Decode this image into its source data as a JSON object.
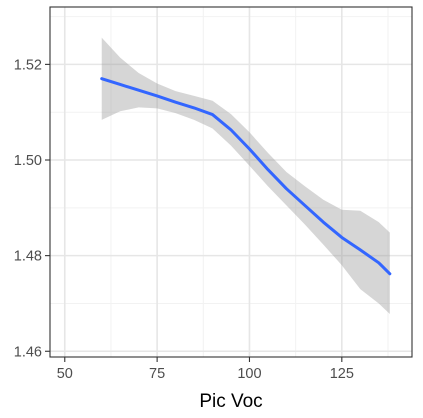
{
  "chart_data": {
    "type": "line",
    "title": "",
    "xlabel": "Pic Voc",
    "ylabel": "",
    "xlim": [
      46,
      144
    ],
    "ylim": [
      1.4588,
      1.532
    ],
    "x_ticks": [
      50,
      75,
      100,
      125
    ],
    "y_ticks": [
      1.46,
      1.48,
      1.5,
      1.52
    ],
    "x_tick_labels": [
      "50",
      "75",
      "100",
      "125"
    ],
    "y_tick_labels": [
      "1.46",
      "1.48",
      "1.50",
      "1.52"
    ],
    "grid": true,
    "legend": "none",
    "series": [
      {
        "style": "smooth fit with confidence band",
        "color": "#3366FF",
        "band_color": "#999999",
        "x": [
          60,
          65,
          70,
          75,
          80,
          85,
          90,
          95,
          100,
          105,
          110,
          115,
          120,
          125,
          130,
          135,
          138
        ],
        "y": [
          1.517,
          1.5158,
          1.5146,
          1.5134,
          1.5121,
          1.5109,
          1.5095,
          1.5063,
          1.5023,
          1.498,
          1.494,
          1.4905,
          1.487,
          1.4838,
          1.4812,
          1.4785,
          1.4762
        ],
        "lower": [
          1.5084,
          1.5102,
          1.511,
          1.5108,
          1.5098,
          1.5084,
          1.5066,
          1.503,
          1.4988,
          1.4945,
          1.4905,
          1.4865,
          1.4823,
          1.478,
          1.473,
          1.47,
          1.4678
        ],
        "upper": [
          1.5256,
          1.5214,
          1.5182,
          1.516,
          1.5144,
          1.5134,
          1.5124,
          1.5096,
          1.5058,
          1.5015,
          1.4975,
          1.4945,
          1.4917,
          1.4896,
          1.4894,
          1.487,
          1.4848
        ]
      }
    ]
  }
}
